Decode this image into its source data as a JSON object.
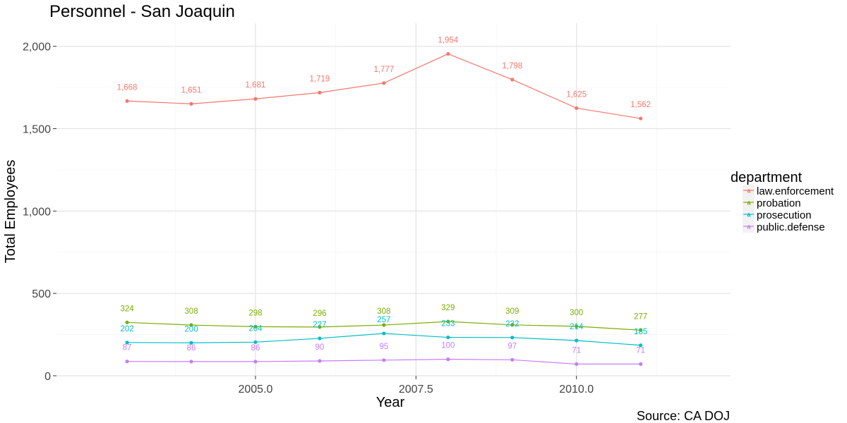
{
  "chart_data": {
    "type": "line",
    "title": "Personnel - San Joaquin",
    "xlabel": "Year",
    "ylabel": "Total Employees",
    "caption": "Source: CA DOJ",
    "x": [
      2003,
      2004,
      2005,
      2006,
      2007,
      2008,
      2009,
      2010,
      2011
    ],
    "xlim": [
      2001.9,
      2012.4
    ],
    "ylim": [
      0,
      2140
    ],
    "x_ticks": [
      2005.0,
      2007.5,
      2010.0
    ],
    "x_tick_labels": [
      "2005.0",
      "2007.5",
      "2010.0"
    ],
    "y_ticks": [
      0,
      500,
      1000,
      1500,
      2000
    ],
    "y_tick_labels": [
      "0",
      "500",
      "1,000",
      "1,500",
      "2,000"
    ],
    "grid": true,
    "legend": {
      "title": "department",
      "placement": "right"
    },
    "series": [
      {
        "name": "law.enforcement",
        "color": "#F8766D",
        "values": [
          1668,
          1651,
          1681,
          1719,
          1777,
          1954,
          1798,
          1625,
          1562
        ],
        "labels": [
          "1,668",
          "1,651",
          "1,681",
          "1,719",
          "1,777",
          "1,954",
          "1,798",
          "1,625",
          "1,562"
        ]
      },
      {
        "name": "probation",
        "color": "#7CAE00",
        "values": [
          324,
          308,
          298,
          296,
          308,
          329,
          309,
          300,
          277
        ],
        "labels": [
          "324",
          "308",
          "298",
          "296",
          "308",
          "329",
          "309",
          "300",
          "277"
        ]
      },
      {
        "name": "prosecution",
        "color": "#00BFC4",
        "values": [
          202,
          200,
          204,
          227,
          257,
          233,
          232,
          214,
          185
        ],
        "labels": [
          "202",
          "200",
          "204",
          "227",
          "257",
          "233",
          "232",
          "214",
          "185"
        ]
      },
      {
        "name": "public.defense",
        "color": "#C77CFF",
        "values": [
          87,
          86,
          86,
          90,
          95,
          100,
          97,
          71,
          71
        ],
        "labels": [
          "87",
          "86",
          "86",
          "90",
          "95",
          "100",
          "97",
          "71",
          "71"
        ]
      }
    ]
  }
}
